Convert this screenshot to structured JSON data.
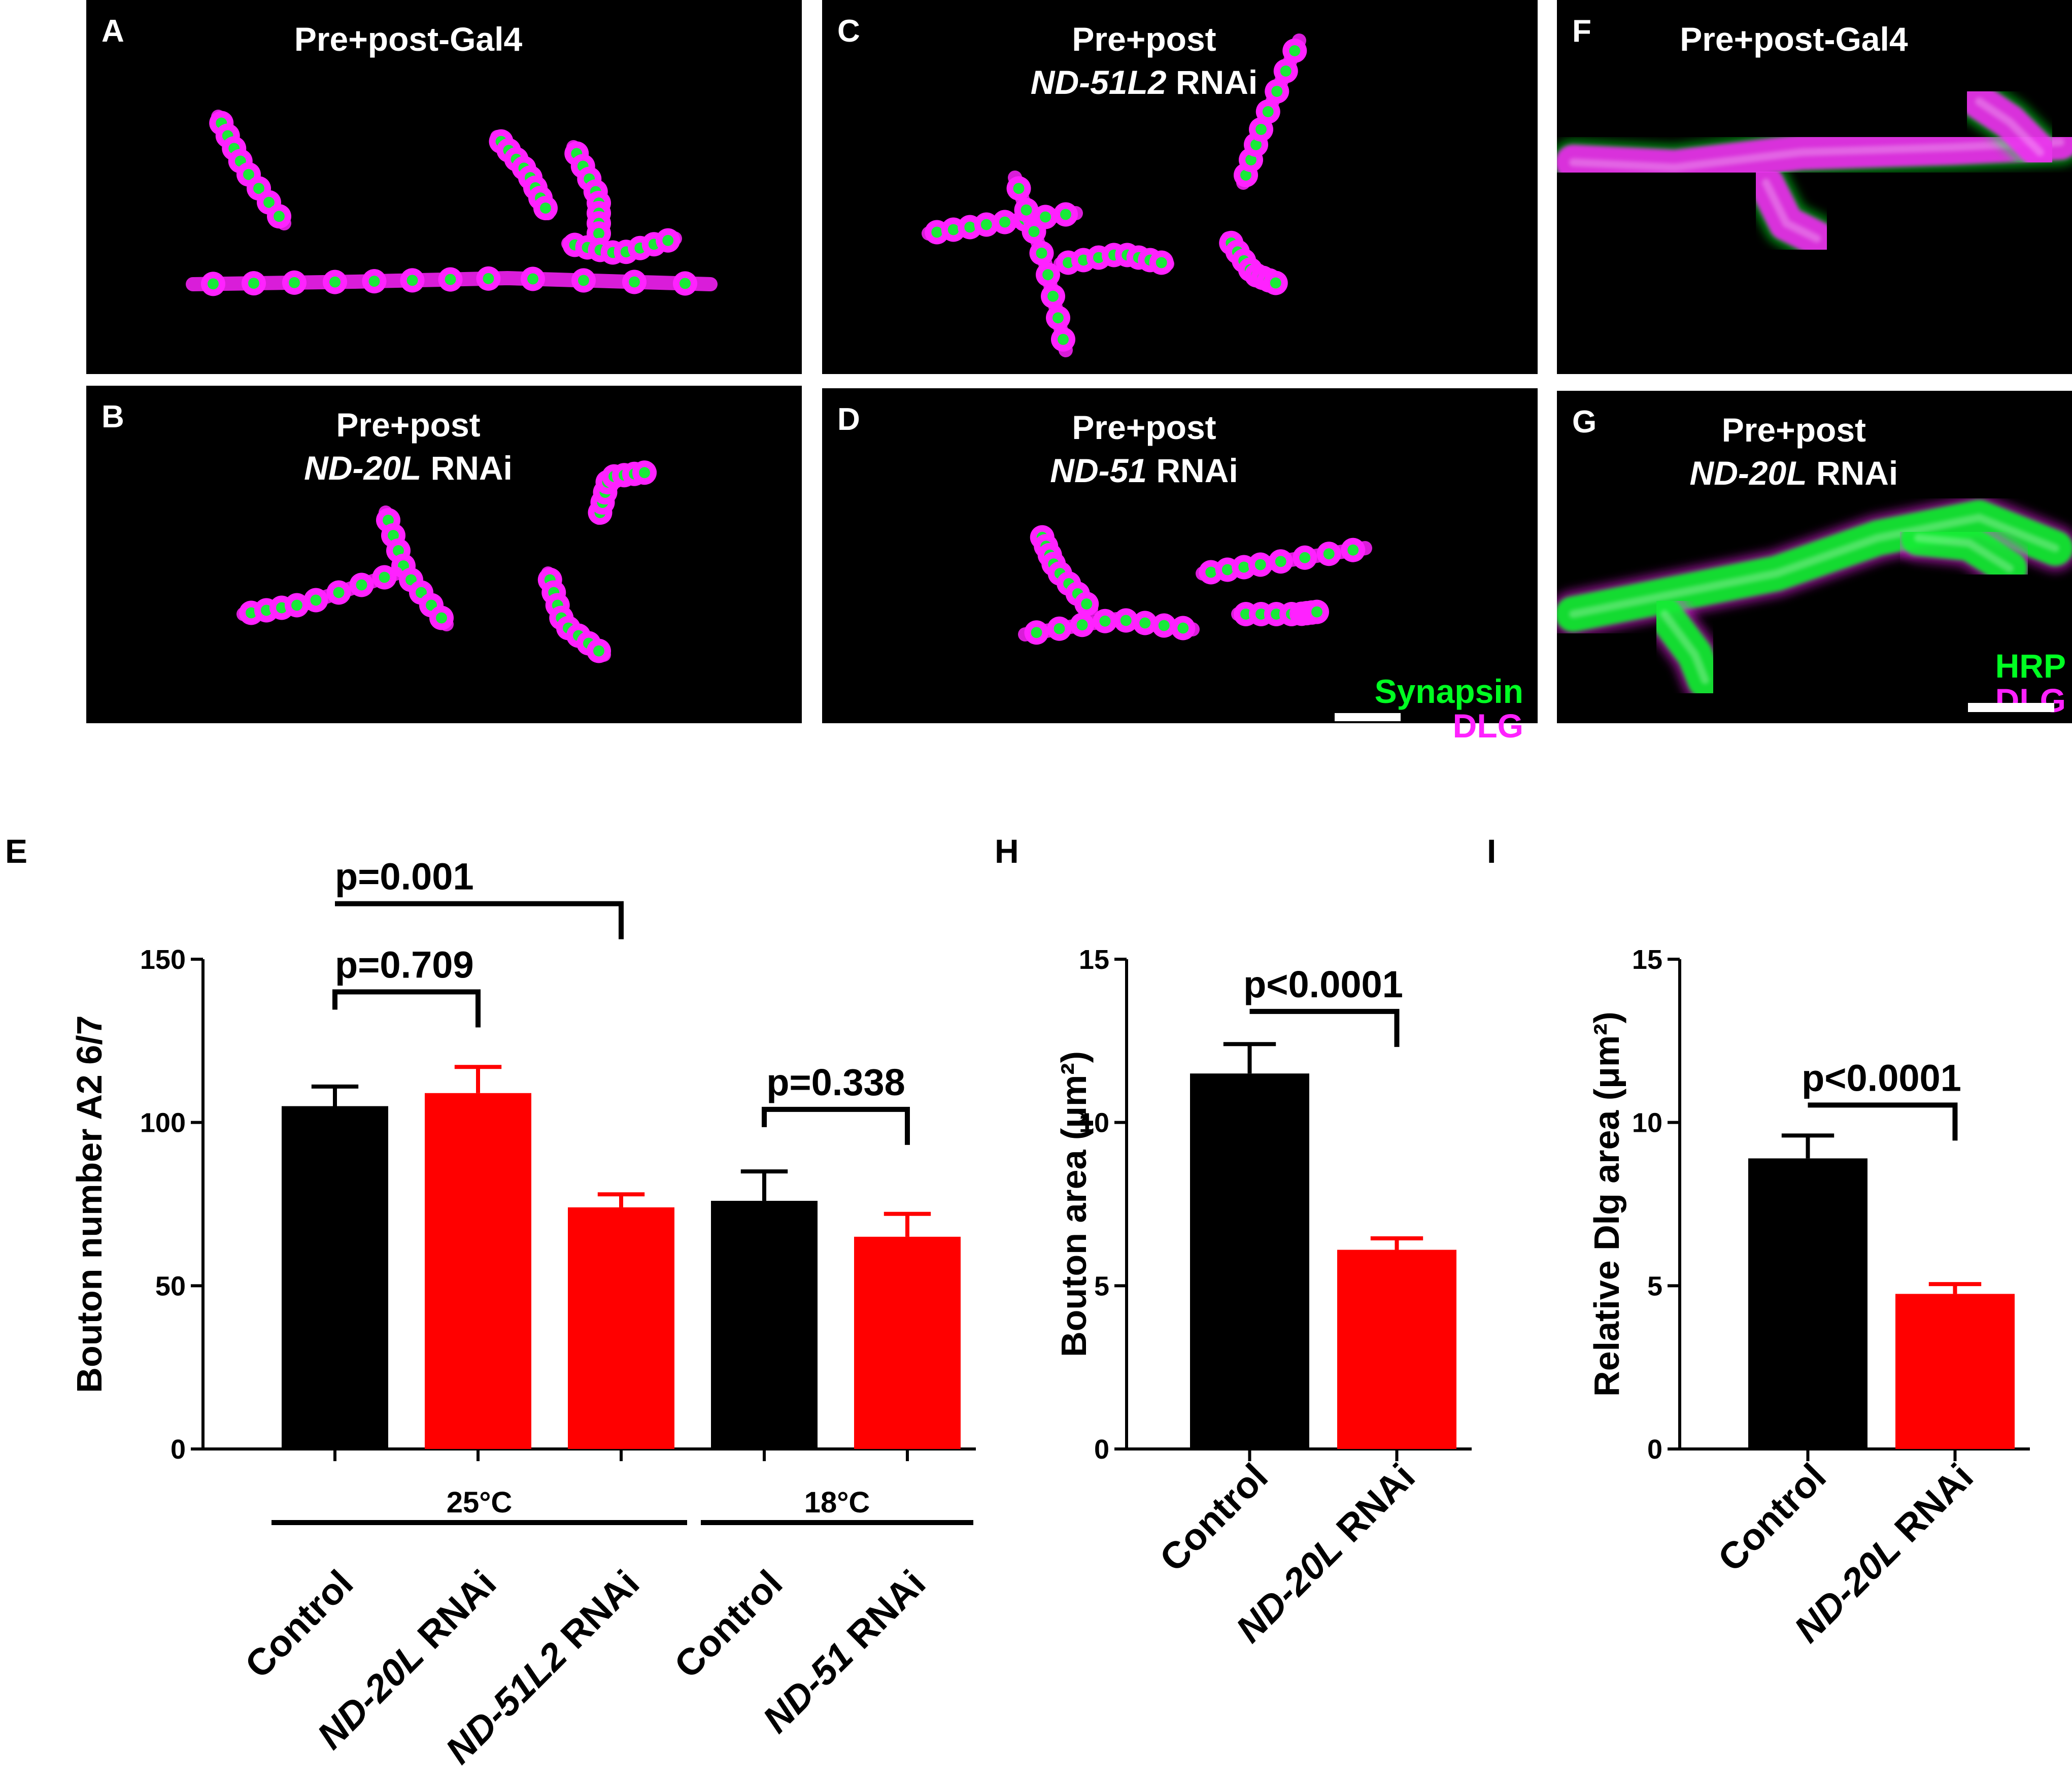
{
  "micrographs": [
    {
      "letter": "A",
      "title": [
        "Pre+post-Gal4"
      ],
      "italic_line": [
        false
      ]
    },
    {
      "letter": "B",
      "title": [
        "Pre+post",
        "ND-20L|RNAi"
      ],
      "italic_line": [
        false,
        true
      ]
    },
    {
      "letter": "C",
      "title": [
        "Pre+post",
        "ND-51L2|RNAi"
      ],
      "italic_line": [
        false,
        true
      ]
    },
    {
      "letter": "D",
      "title": [
        "Pre+post",
        "ND-51|RNAi"
      ],
      "italic_line": [
        false,
        true
      ]
    },
    {
      "letter": "F",
      "title": [
        "Pre+post-Gal4"
      ],
      "italic_line": [
        false
      ]
    },
    {
      "letter": "G",
      "title": [
        "Pre+post",
        "ND-20L|RNAi"
      ],
      "italic_line": [
        false,
        true
      ]
    }
  ],
  "legend_D": {
    "line1": "Synapsin",
    "line2": "DLG"
  },
  "legend_G": {
    "line1": "HRP",
    "line2": "DLG"
  },
  "colors": {
    "green": "#00ff22",
    "magenta": "#ff22ff",
    "control_bar": "#000000",
    "rnai_bar": "#ff0000"
  },
  "chart_data": [
    {
      "panel": "E",
      "type": "bar",
      "ylabel": "Bouton number A2 6/7",
      "xlabel": "",
      "ylim": [
        0,
        150
      ],
      "yticks": [
        0,
        50,
        100,
        150
      ],
      "categories": [
        {
          "label": "Control",
          "italic": "",
          "rest": "Control"
        },
        {
          "label": "ND-20L RNAi",
          "italic": "ND-20L",
          "rest": " RNAi"
        },
        {
          "label": "ND-51L2 RNAi",
          "italic": "ND-51L2",
          "rest": " RNAi"
        },
        {
          "label": "Control",
          "italic": "",
          "rest": "Control"
        },
        {
          "label": "ND-51 RNAi",
          "italic": "ND-51",
          "rest": " RNAi"
        }
      ],
      "values": [
        105,
        109,
        74,
        76,
        65
      ],
      "errors": [
        6,
        8,
        4,
        9,
        7
      ],
      "bar_colors": [
        "#000000",
        "#ff0000",
        "#ff0000",
        "#000000",
        "#ff0000"
      ],
      "groups": [
        {
          "label": "25°C",
          "from": 0,
          "to": 2
        },
        {
          "label": "18°C",
          "from": 3,
          "to": 4
        }
      ],
      "comparisons": [
        {
          "label": "p=0.001",
          "from": 0,
          "to": 2
        },
        {
          "label": "p=0.709",
          "from": 0,
          "to": 1
        },
        {
          "label": "p=0.338",
          "from": 3,
          "to": 4
        }
      ]
    },
    {
      "panel": "H",
      "type": "bar",
      "ylabel": "Bouton area (μm²)",
      "xlabel": "",
      "ylim": [
        0,
        15
      ],
      "yticks": [
        0,
        5,
        10,
        15
      ],
      "categories": [
        {
          "label": "Control",
          "italic": "",
          "rest": "Control"
        },
        {
          "label": "ND-20L RNAi",
          "italic": "ND-20L",
          "rest": " RNAi"
        }
      ],
      "values": [
        11.5,
        6.1
      ],
      "errors": [
        0.9,
        0.35
      ],
      "bar_colors": [
        "#000000",
        "#ff0000"
      ],
      "groups": [],
      "comparisons": [
        {
          "label": "p<0.0001",
          "from": 0,
          "to": 1
        }
      ]
    },
    {
      "panel": "I",
      "type": "bar",
      "ylabel": "Relative Dlg area (μm²)",
      "xlabel": "",
      "ylim": [
        0,
        15
      ],
      "yticks": [
        0,
        5,
        10,
        15
      ],
      "categories": [
        {
          "label": "Control",
          "italic": "",
          "rest": "Control"
        },
        {
          "label": "ND-20L RNAi",
          "italic": "ND-20L",
          "rest": " RNAi"
        }
      ],
      "values": [
        8.9,
        4.75
      ],
      "errors": [
        0.7,
        0.3
      ],
      "bar_colors": [
        "#000000",
        "#ff0000"
      ],
      "groups": [],
      "comparisons": [
        {
          "label": "p<0.0001",
          "from": 0,
          "to": 1
        }
      ]
    }
  ]
}
